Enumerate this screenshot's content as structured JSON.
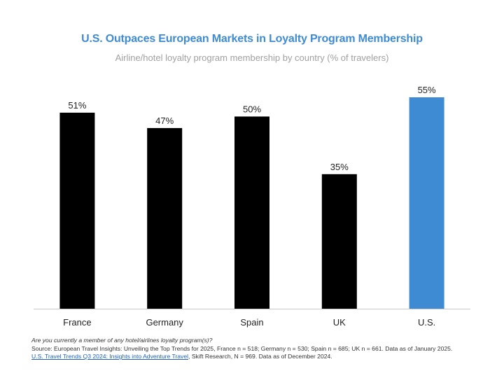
{
  "colors": {
    "title": "#3f8bd3",
    "subtitle": "#a0a0a0",
    "bar_default": "#000000",
    "bar_highlight": "#3f8bd3",
    "baseline": "#c8c8c8",
    "link": "#1f5fb8"
  },
  "chart_data": {
    "type": "bar",
    "title": "U.S. Outpaces European Markets in Loyalty Program Membership",
    "subtitle": "Airline/hotel loyalty program membership by country (% of travelers)",
    "categories": [
      "France",
      "Germany",
      "Spain",
      "UK",
      "U.S."
    ],
    "values": [
      51,
      47,
      50,
      35,
      55
    ],
    "data_labels": [
      "51%",
      "47%",
      "50%",
      "35%",
      "55%"
    ],
    "highlight": [
      "U.S."
    ],
    "ylim": [
      0,
      55
    ],
    "grid": false,
    "legend": "none"
  },
  "footnotes": {
    "question": "Are you currently a member of any hotel/airlines loyalty program(s)?",
    "source": "Source: European Travel Insights: Unveiling the Top Trends for 2025, France n = 518; Germany n = 530; Spain n = 685; UK n = 661. Data as of January 2025.",
    "link_text": "U.S. Travel Trends Q3 2024: Insights into Adventure Travel",
    "after_link": ", Skift Research, N = 969. Data as of December 2024."
  }
}
